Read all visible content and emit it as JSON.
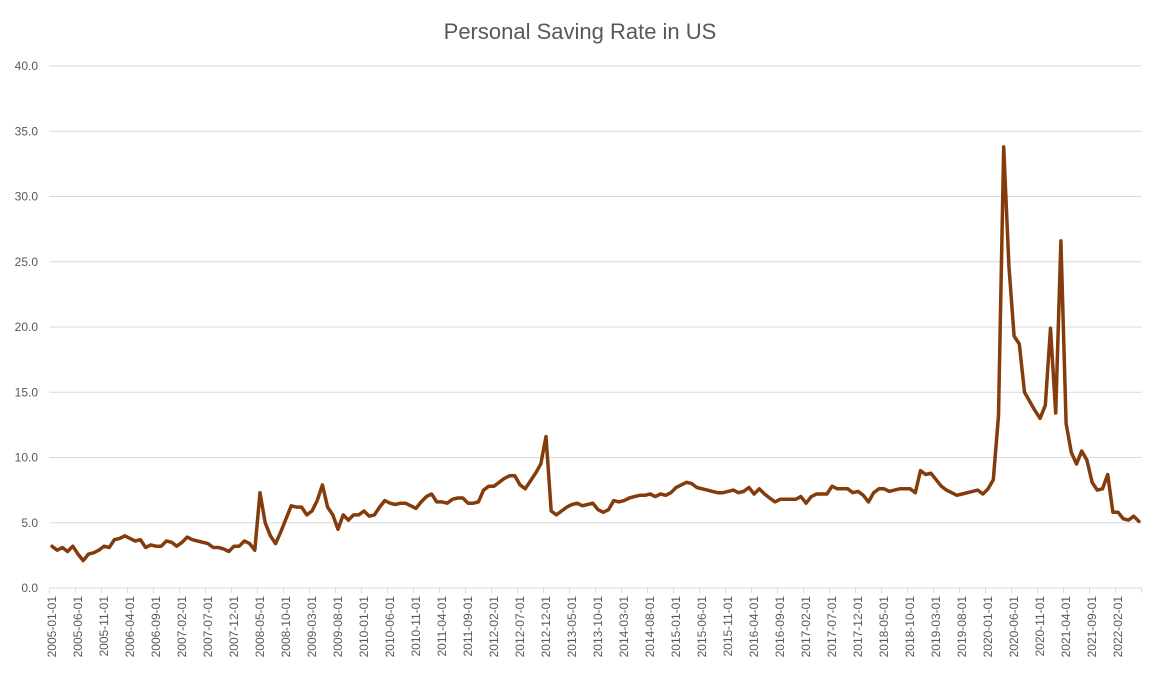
{
  "chart_data": {
    "type": "line",
    "title": "Personal Saving Rate in US",
    "xlabel": "",
    "ylabel": "",
    "ylim": [
      0,
      40
    ],
    "yticks": [
      "0.0",
      "5.0",
      "10.0",
      "15.0",
      "20.0",
      "25.0",
      "30.0",
      "35.0",
      "40.0"
    ],
    "grid": true,
    "legend": "none",
    "line_color": "#843C0C",
    "x_label_every": 5,
    "categories": [
      "2005-01-01",
      "2005-02-01",
      "2005-03-01",
      "2005-04-01",
      "2005-05-01",
      "2005-06-01",
      "2005-07-01",
      "2005-08-01",
      "2005-09-01",
      "2005-10-01",
      "2005-11-01",
      "2005-12-01",
      "2006-01-01",
      "2006-02-01",
      "2006-03-01",
      "2006-04-01",
      "2006-05-01",
      "2006-06-01",
      "2006-07-01",
      "2006-08-01",
      "2006-09-01",
      "2006-10-01",
      "2006-11-01",
      "2006-12-01",
      "2007-01-01",
      "2007-02-01",
      "2007-03-01",
      "2007-04-01",
      "2007-05-01",
      "2007-06-01",
      "2007-07-01",
      "2007-08-01",
      "2007-09-01",
      "2007-10-01",
      "2007-11-01",
      "2007-12-01",
      "2008-01-01",
      "2008-02-01",
      "2008-03-01",
      "2008-04-01",
      "2008-05-01",
      "2008-06-01",
      "2008-07-01",
      "2008-08-01",
      "2008-09-01",
      "2008-10-01",
      "2008-11-01",
      "2008-12-01",
      "2009-01-01",
      "2009-02-01",
      "2009-03-01",
      "2009-04-01",
      "2009-05-01",
      "2009-06-01",
      "2009-07-01",
      "2009-08-01",
      "2009-09-01",
      "2009-10-01",
      "2009-11-01",
      "2009-12-01",
      "2010-01-01",
      "2010-02-01",
      "2010-03-01",
      "2010-04-01",
      "2010-05-01",
      "2010-06-01",
      "2010-07-01",
      "2010-08-01",
      "2010-09-01",
      "2010-10-01",
      "2010-11-01",
      "2010-12-01",
      "2011-01-01",
      "2011-02-01",
      "2011-03-01",
      "2011-04-01",
      "2011-05-01",
      "2011-06-01",
      "2011-07-01",
      "2011-08-01",
      "2011-09-01",
      "2011-10-01",
      "2011-11-01",
      "2011-12-01",
      "2012-01-01",
      "2012-02-01",
      "2012-03-01",
      "2012-04-01",
      "2012-05-01",
      "2012-06-01",
      "2012-07-01",
      "2012-08-01",
      "2012-09-01",
      "2012-10-01",
      "2012-11-01",
      "2012-12-01",
      "2013-01-01",
      "2013-02-01",
      "2013-03-01",
      "2013-04-01",
      "2013-05-01",
      "2013-06-01",
      "2013-07-01",
      "2013-08-01",
      "2013-09-01",
      "2013-10-01",
      "2013-11-01",
      "2013-12-01",
      "2014-01-01",
      "2014-02-01",
      "2014-03-01",
      "2014-04-01",
      "2014-05-01",
      "2014-06-01",
      "2014-07-01",
      "2014-08-01",
      "2014-09-01",
      "2014-10-01",
      "2014-11-01",
      "2014-12-01",
      "2015-01-01",
      "2015-02-01",
      "2015-03-01",
      "2015-04-01",
      "2015-05-01",
      "2015-06-01",
      "2015-07-01",
      "2015-08-01",
      "2015-09-01",
      "2015-10-01",
      "2015-11-01",
      "2015-12-01",
      "2016-01-01",
      "2016-02-01",
      "2016-03-01",
      "2016-04-01",
      "2016-05-01",
      "2016-06-01",
      "2016-07-01",
      "2016-08-01",
      "2016-09-01",
      "2016-10-01",
      "2016-11-01",
      "2016-12-01",
      "2017-01-01",
      "2017-02-01",
      "2017-03-01",
      "2017-04-01",
      "2017-05-01",
      "2017-06-01",
      "2017-07-01",
      "2017-08-01",
      "2017-09-01",
      "2017-10-01",
      "2017-11-01",
      "2017-12-01",
      "2018-01-01",
      "2018-02-01",
      "2018-03-01",
      "2018-04-01",
      "2018-05-01",
      "2018-06-01",
      "2018-07-01",
      "2018-08-01",
      "2018-09-01",
      "2018-10-01",
      "2018-11-01",
      "2018-12-01",
      "2019-01-01",
      "2019-02-01",
      "2019-03-01",
      "2019-04-01",
      "2019-05-01",
      "2019-06-01",
      "2019-07-01",
      "2019-08-01",
      "2019-09-01",
      "2019-10-01",
      "2019-11-01",
      "2019-12-01",
      "2020-01-01",
      "2020-02-01",
      "2020-03-01",
      "2020-04-01",
      "2020-05-01",
      "2020-06-01",
      "2020-07-01",
      "2020-08-01",
      "2020-09-01",
      "2020-10-01",
      "2020-11-01",
      "2020-12-01",
      "2021-01-01",
      "2021-02-01",
      "2021-03-01",
      "2021-04-01",
      "2021-05-01",
      "2021-06-01",
      "2021-07-01",
      "2021-08-01",
      "2021-09-01",
      "2021-10-01",
      "2021-11-01",
      "2021-12-01",
      "2022-01-01",
      "2022-02-01",
      "2022-03-01",
      "2022-04-01",
      "2022-05-01",
      "2022-06-01"
    ],
    "values": [
      3.2,
      2.9,
      3.1,
      2.8,
      3.2,
      2.6,
      2.1,
      2.6,
      2.7,
      2.9,
      3.2,
      3.1,
      3.7,
      3.8,
      4.0,
      3.8,
      3.6,
      3.7,
      3.1,
      3.3,
      3.2,
      3.2,
      3.6,
      3.5,
      3.2,
      3.5,
      3.9,
      3.7,
      3.6,
      3.5,
      3.4,
      3.1,
      3.1,
      3.0,
      2.8,
      3.2,
      3.2,
      3.6,
      3.4,
      2.9,
      7.3,
      5.0,
      4.0,
      3.4,
      4.3,
      5.3,
      6.3,
      6.2,
      6.2,
      5.6,
      5.9,
      6.7,
      7.9,
      6.2,
      5.6,
      4.5,
      5.6,
      5.2,
      5.6,
      5.6,
      5.9,
      5.5,
      5.6,
      6.2,
      6.7,
      6.5,
      6.4,
      6.5,
      6.5,
      6.3,
      6.1,
      6.6,
      7.0,
      7.2,
      6.6,
      6.6,
      6.5,
      6.8,
      6.9,
      6.9,
      6.5,
      6.5,
      6.6,
      7.5,
      7.8,
      7.8,
      8.1,
      8.4,
      8.6,
      8.6,
      7.9,
      7.6,
      8.2,
      8.8,
      9.5,
      11.6,
      5.9,
      5.6,
      5.9,
      6.2,
      6.4,
      6.5,
      6.3,
      6.4,
      6.5,
      6.0,
      5.8,
      6.0,
      6.7,
      6.6,
      6.7,
      6.9,
      7.0,
      7.1,
      7.1,
      7.2,
      7.0,
      7.2,
      7.1,
      7.3,
      7.7,
      7.9,
      8.1,
      8.0,
      7.7,
      7.6,
      7.5,
      7.4,
      7.3,
      7.3,
      7.4,
      7.5,
      7.3,
      7.4,
      7.7,
      7.2,
      7.6,
      7.2,
      6.9,
      6.6,
      6.8,
      6.8,
      6.8,
      6.8,
      7.0,
      6.5,
      7.0,
      7.2,
      7.2,
      7.2,
      7.8,
      7.6,
      7.6,
      7.6,
      7.3,
      7.4,
      7.1,
      6.6,
      7.3,
      7.6,
      7.6,
      7.4,
      7.5,
      7.6,
      7.6,
      7.6,
      7.3,
      9.0,
      8.7,
      8.8,
      8.3,
      7.8,
      7.5,
      7.3,
      7.1,
      7.2,
      7.3,
      7.4,
      7.5,
      7.2,
      7.6,
      8.3,
      13.2,
      33.8,
      24.7,
      19.3,
      18.7,
      15.0,
      14.3,
      13.6,
      13.0,
      14.0,
      19.9,
      13.4,
      26.6,
      12.6,
      10.4,
      9.5,
      10.5,
      9.8,
      8.1,
      7.5,
      7.6,
      8.7,
      5.8,
      5.8,
      5.3,
      5.2,
      5.5,
      5.1
    ]
  }
}
